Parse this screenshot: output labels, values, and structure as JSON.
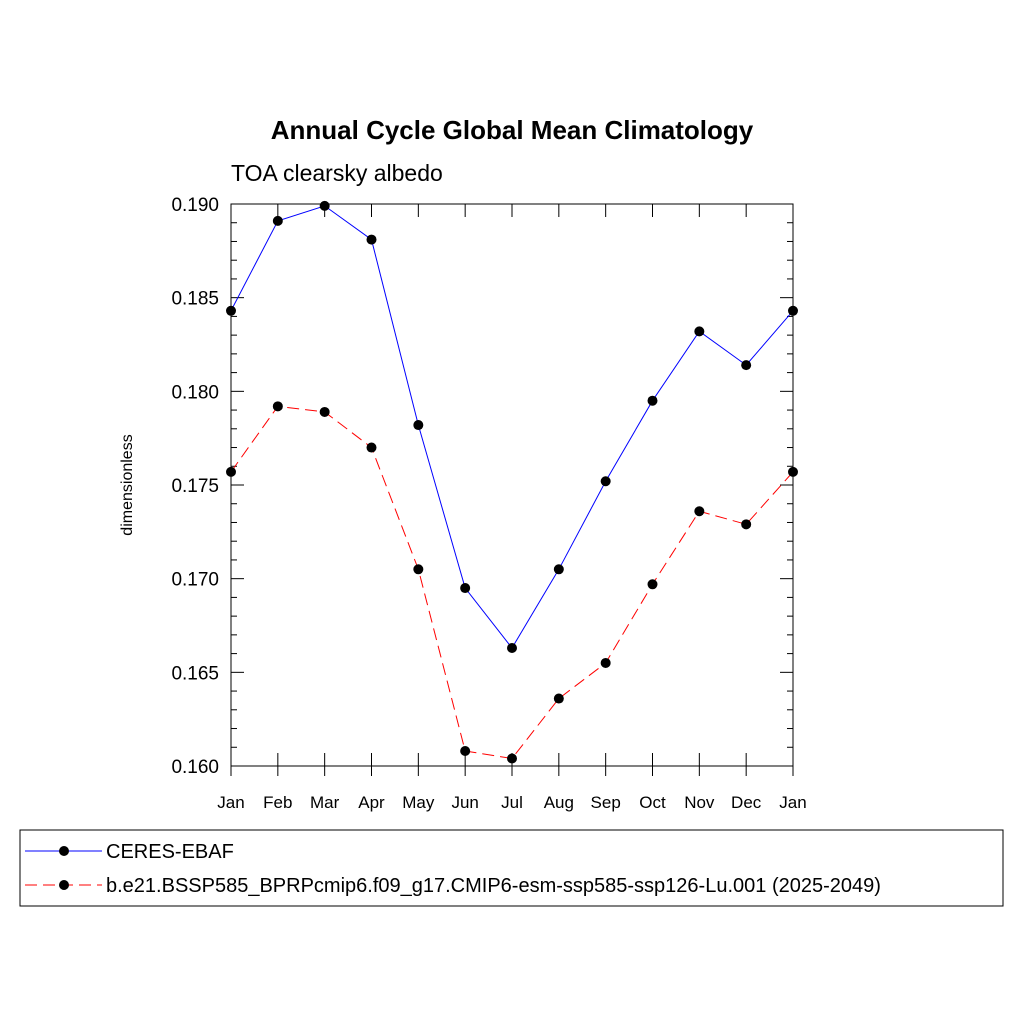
{
  "chart_data": {
    "type": "line",
    "title": "Annual Cycle Global Mean Climatology",
    "subtitle": "TOA clearsky albedo",
    "ylabel": "dimensionless",
    "xlabel": "",
    "ylim": [
      0.16,
      0.19
    ],
    "yticks": [
      "0.160",
      "0.165",
      "0.170",
      "0.175",
      "0.180",
      "0.185",
      "0.190"
    ],
    "categories": [
      "Jan",
      "Feb",
      "Mar",
      "Apr",
      "May",
      "Jun",
      "Jul",
      "Aug",
      "Sep",
      "Oct",
      "Nov",
      "Dec",
      "Jan"
    ],
    "grid": false,
    "legend_placement": "bottom",
    "series": [
      {
        "name": "CERES-EBAF",
        "color": "#0000ff",
        "dash": "solid",
        "values": [
          0.1843,
          0.1891,
          0.1899,
          0.1881,
          0.1782,
          0.1695,
          0.1663,
          0.1705,
          0.1752,
          0.1795,
          0.1832,
          0.1814,
          0.1843
        ]
      },
      {
        "name": "b.e21.BSSP585_BPRPcmip6.f09_g17.CMIP6-esm-ssp585-ssp126-Lu.001 (2025-2049)",
        "color": "#ff0000",
        "dash": "dashed",
        "values": [
          0.1757,
          0.1792,
          0.1789,
          0.177,
          0.1705,
          0.1608,
          0.1604,
          0.1636,
          0.1655,
          0.1697,
          0.1736,
          0.1729,
          0.1757
        ]
      }
    ]
  }
}
